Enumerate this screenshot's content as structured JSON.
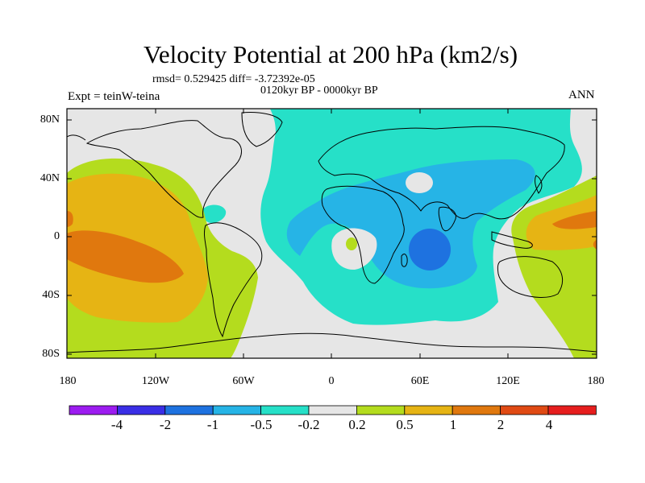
{
  "header": {
    "title": "Velocity Potential at 200 hPa (km2/s)",
    "stats": "rmsd= 0.529425 diff= -3.72392e-05",
    "period": "0120kyr BP - 0000kyr BP",
    "experiment": "Expt = teinW-teina",
    "season": "ANN"
  },
  "map": {
    "projection": "cylindrical equidistant",
    "lon_range": [
      -180,
      180
    ],
    "lat_range": [
      -90,
      90
    ],
    "lat_ticks": [
      "80N",
      "40N",
      "0",
      "40S",
      "80S"
    ],
    "lon_ticks": [
      "180",
      "120W",
      "60W",
      "0",
      "60E",
      "120E",
      "180"
    ],
    "background_color": "#e6e6e6",
    "coastline_color": "#000000"
  },
  "legend": {
    "labels": [
      "-4",
      "-2",
      "-1",
      "-0.5",
      "-0.2",
      "0.2",
      "0.5",
      "1",
      "2",
      "4"
    ],
    "colors": [
      "#9c1cf0",
      "#3a2ee6",
      "#1e72e0",
      "#26b4e6",
      "#26e0c8",
      "#e6e6e6",
      "#b4dc1e",
      "#e6b414",
      "#e0780e",
      "#e04a14",
      "#e61e1e"
    ]
  }
}
